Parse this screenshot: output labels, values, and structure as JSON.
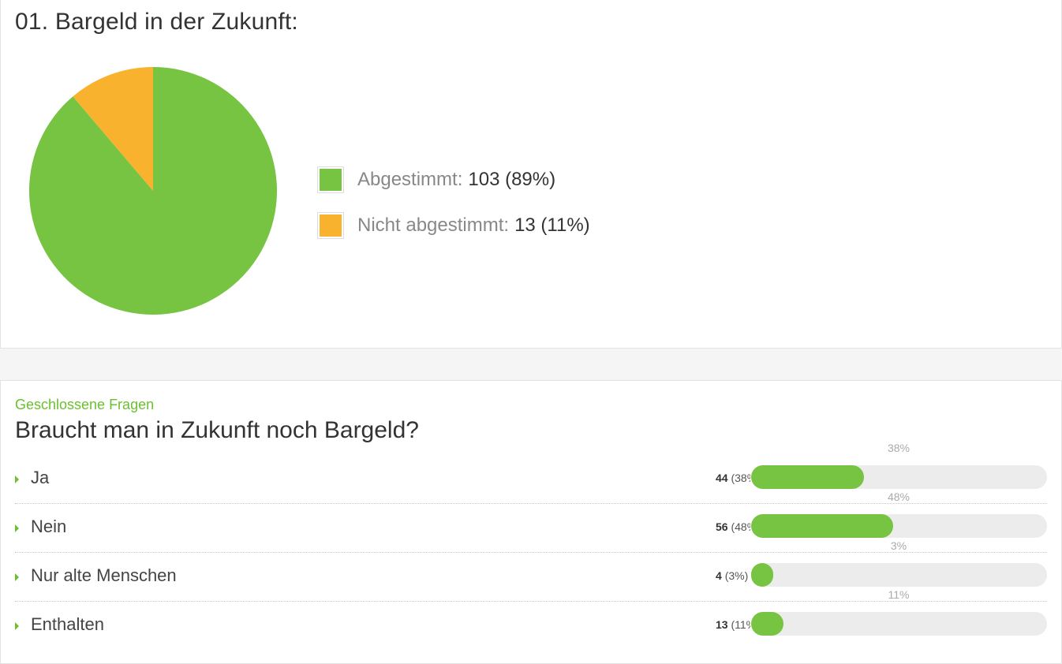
{
  "section1": {
    "title": "01. Bargeld in der Zukunft:",
    "legend": [
      {
        "label": "Abgestimmt:",
        "value": "103 (89%)",
        "color": "#76c442"
      },
      {
        "label": "Nicht abgestimmt:",
        "value": "13 (11%)",
        "color": "#f8b22e"
      }
    ]
  },
  "chart_data": {
    "type": "pie",
    "slices": [
      {
        "label": "Abgestimmt",
        "value": 103,
        "percent": 89,
        "color": "#76c442"
      },
      {
        "label": "Nicht abgestimmt",
        "value": 13,
        "percent": 11,
        "color": "#f8b22e"
      }
    ]
  },
  "section2": {
    "category": "Geschlossene Fragen",
    "question": "Braucht man in Zukunft noch Bargeld?",
    "answers": [
      {
        "label": "Ja",
        "count": "44",
        "pct_text": "(38%)",
        "percent": 38,
        "pct_top": "38%"
      },
      {
        "label": "Nein",
        "count": "56",
        "pct_text": "(48%)",
        "percent": 48,
        "pct_top": "48%"
      },
      {
        "label": "Nur alte Menschen",
        "count": "4",
        "pct_text": "(3%)",
        "percent": 3,
        "pct_top": "3%"
      },
      {
        "label": "Enthalten",
        "count": "13",
        "pct_text": "(11%)",
        "percent": 11,
        "pct_top": "11%"
      }
    ],
    "bar_color": "#76c442",
    "caret_color": "#6cc02e"
  }
}
